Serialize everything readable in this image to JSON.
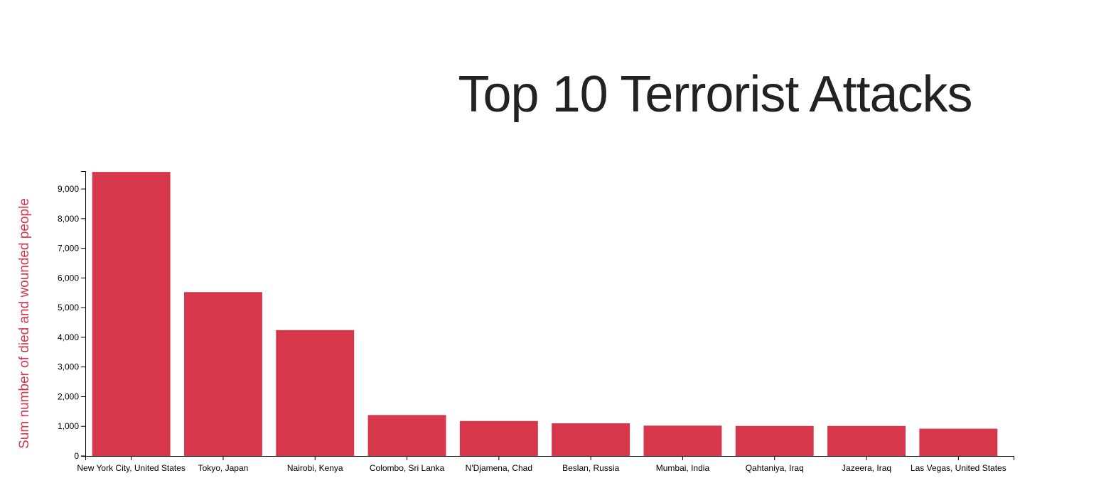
{
  "chart_data": {
    "type": "bar",
    "title": "Top 10 Terrorist Attacks",
    "xlabel": "",
    "ylabel": "Sum number of died and wounded people",
    "categories": [
      "New York City, United States",
      "Tokyo, Japan",
      "Nairobi, Kenya",
      "Colombo, Sri Lanka",
      "N'Djamena, Chad",
      "Beslan, Russia",
      "Mumbai, India",
      "Qahtaniya, Iraq",
      "Jazeera, Iraq",
      "Las Vegas, United States"
    ],
    "values": [
      9574,
      5524,
      4242,
      1380,
      1178,
      1101,
      1022,
      1012,
      1012,
      920
    ],
    "ylim": [
      0,
      9600
    ],
    "yticks": [
      0,
      1000,
      2000,
      3000,
      4000,
      5000,
      6000,
      7000,
      8000,
      9000
    ],
    "ytick_labels": [
      "0",
      "1,000",
      "2,000",
      "3,000",
      "4,000",
      "5,000",
      "6,000",
      "7,000",
      "8,000",
      "9,000"
    ],
    "grid": false,
    "legend": "none",
    "colors": {
      "bar": "#d7374a",
      "ylabel": "#d7374a",
      "title": "#222222",
      "axis": "#000000"
    }
  }
}
